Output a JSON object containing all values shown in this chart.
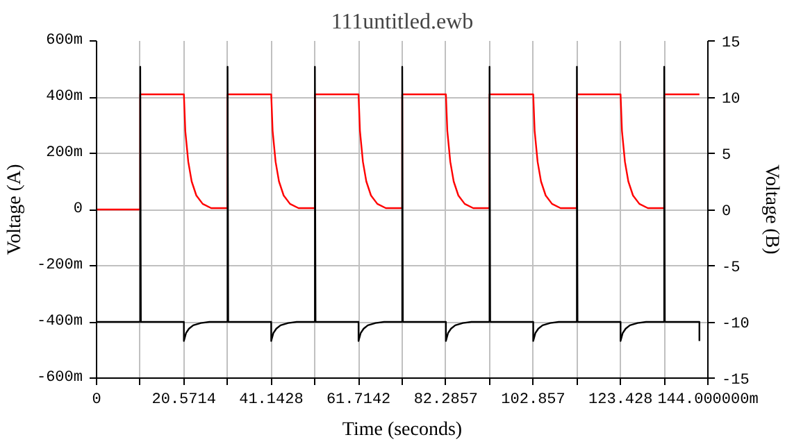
{
  "chart_data": {
    "type": "line",
    "title": "111untitled.ewb",
    "xlabel": "Time (seconds)",
    "ylabel": "Voltage (A)",
    "y2label": "Voltage (B)",
    "xlim": [
      0,
      144
    ],
    "ylim": [
      -600,
      600
    ],
    "y2lim": [
      -15,
      15
    ],
    "xticks": [
      0,
      {
        "value": 10.2857,
        "label": null
      },
      {
        "value": 20.5714,
        "label": "20.5714"
      },
      {
        "value": 30.8571,
        "label": null
      },
      {
        "value": 41.1428,
        "label": "41.1428"
      },
      {
        "value": 51.4286,
        "label": null
      },
      {
        "value": 61.7142,
        "label": "61.7142"
      },
      {
        "value": 72.0,
        "label": null
      },
      {
        "value": 82.2857,
        "label": "82.2857"
      },
      {
        "value": 92.5714,
        "label": null
      },
      {
        "value": 102.857,
        "label": "102.857"
      },
      {
        "value": 113.1429,
        "label": null
      },
      {
        "value": 123.428,
        "label": "123.428"
      },
      {
        "value": 133.7143,
        "label": null
      },
      {
        "value": 144,
        "label": "144.000000m"
      }
    ],
    "yticks": [
      {
        "value": -600,
        "label": "-600m"
      },
      {
        "value": -400,
        "label": "-400m"
      },
      {
        "value": -200,
        "label": "-200m"
      },
      0,
      {
        "value": 200,
        "label": "200m"
      },
      {
        "value": 400,
        "label": "400m"
      },
      {
        "value": 600,
        "label": "600m"
      }
    ],
    "y2ticks": [
      -15,
      -10,
      -5,
      0,
      5,
      10,
      15
    ],
    "grid": true,
    "marker": "none",
    "line_style": "solid",
    "series": [
      {
        "color": "#ff0000",
        "x": [
          0,
          10.29,
          10.29,
          20.57,
          20.9,
          21.6,
          22.4,
          23.5,
          25.0,
          27.0,
          30.86,
          30.86,
          41.14,
          41.47,
          42.17,
          42.97,
          44.07,
          45.57,
          47.57,
          51.43,
          51.43,
          61.71,
          62.04,
          62.74,
          63.54,
          64.64,
          66.14,
          68.14,
          72.0,
          72.0,
          82.29,
          82.62,
          83.32,
          84.12,
          85.22,
          86.72,
          88.72,
          92.57,
          92.57,
          102.86,
          103.19,
          103.89,
          104.69,
          105.79,
          107.29,
          109.29,
          113.14,
          113.14,
          123.43,
          123.76,
          124.46,
          125.26,
          126.36,
          127.86,
          129.86,
          133.71,
          133.71,
          142.0
        ],
        "values": [
          0,
          0,
          410,
          410,
          280,
          170,
          100,
          50,
          20,
          5,
          5,
          410,
          410,
          280,
          170,
          100,
          50,
          20,
          5,
          5,
          410,
          410,
          280,
          170,
          100,
          50,
          20,
          5,
          5,
          410,
          410,
          280,
          170,
          100,
          50,
          20,
          5,
          5,
          410,
          410,
          280,
          170,
          100,
          50,
          20,
          5,
          5,
          410,
          410,
          280,
          170,
          100,
          50,
          20,
          5,
          5,
          410,
          410
        ]
      },
      {
        "color": "#000000",
        "axis": "y2",
        "x": [
          0,
          10.29,
          10.29,
          10.44,
          20.57,
          20.57,
          21.07,
          21.77,
          22.77,
          24.57,
          26.57,
          30.86,
          30.86,
          31.01,
          41.14,
          41.14,
          41.64,
          42.34,
          43.34,
          45.14,
          47.14,
          51.43,
          51.43,
          51.58,
          61.71,
          61.71,
          62.21,
          62.91,
          63.91,
          65.71,
          67.71,
          72.0,
          72.0,
          72.15,
          82.29,
          82.29,
          82.79,
          83.49,
          84.49,
          86.29,
          88.29,
          92.57,
          92.57,
          92.72,
          102.86,
          102.86,
          103.36,
          104.06,
          105.06,
          106.86,
          108.86,
          113.14,
          113.14,
          113.29,
          123.43,
          123.43,
          123.93,
          124.63,
          125.63,
          127.43,
          129.43,
          133.71,
          133.71,
          133.86,
          142.0,
          142.0
        ],
        "values": [
          -10,
          -10,
          12.7,
          -10,
          -10,
          -11.7,
          -11.0,
          -10.6,
          -10.3,
          -10.1,
          -10,
          -10,
          12.7,
          -10,
          -10,
          -11.7,
          -11.0,
          -10.6,
          -10.3,
          -10.1,
          -10,
          -10,
          12.7,
          -10,
          -10,
          -11.7,
          -11.0,
          -10.6,
          -10.3,
          -10.1,
          -10,
          -10,
          12.7,
          -10,
          -10,
          -11.7,
          -11.0,
          -10.6,
          -10.3,
          -10.1,
          -10,
          -10,
          12.7,
          -10,
          -10,
          -11.7,
          -11.0,
          -10.6,
          -10.3,
          -10.1,
          -10,
          -10,
          12.7,
          -10,
          -10,
          -11.7,
          -11.0,
          -10.6,
          -10.3,
          -10.1,
          -10,
          -10,
          12.7,
          -10,
          -10,
          -11.7
        ]
      }
    ]
  }
}
